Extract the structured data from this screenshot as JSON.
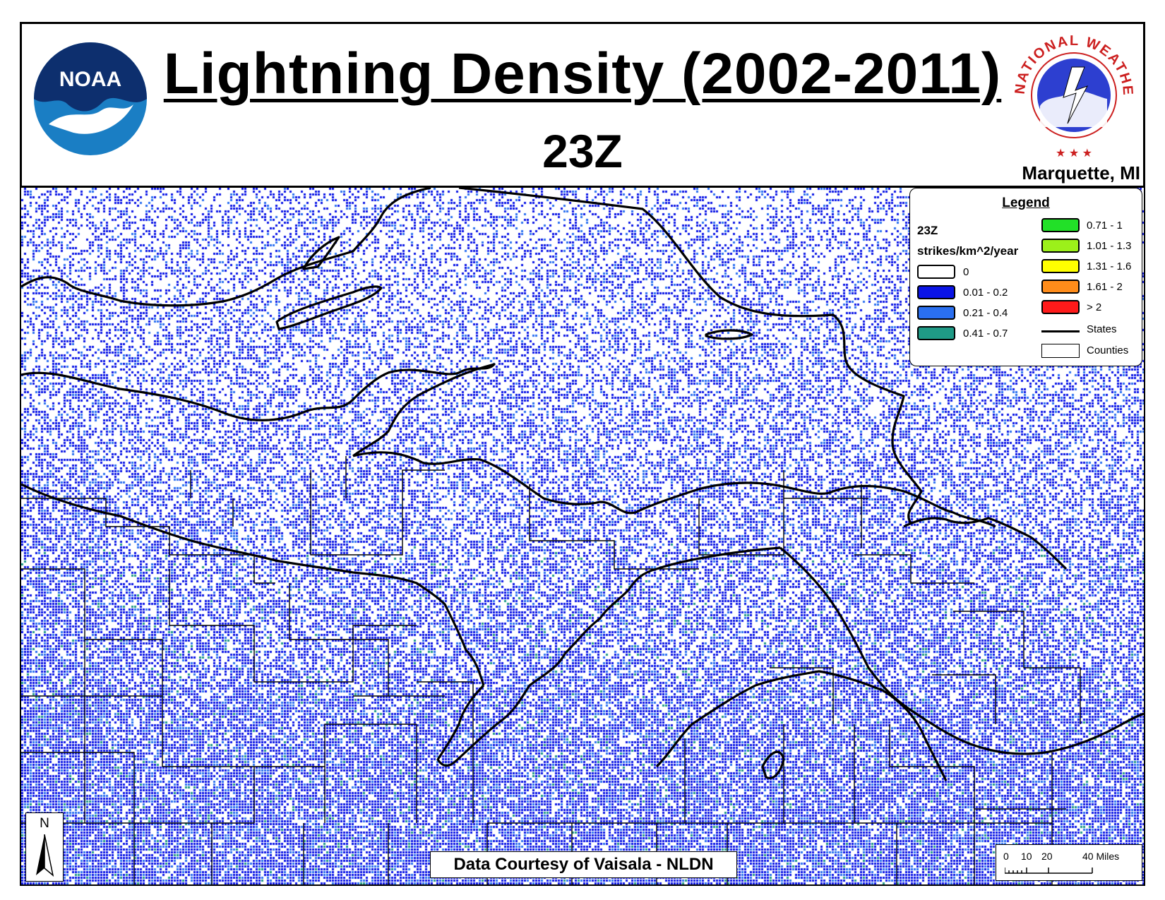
{
  "header": {
    "title": "Lightning Density (2002-2011)",
    "subtitle": "23Z",
    "office": "Marquette, MI",
    "noaa_logo_text": "NOAA",
    "nws_logo_text": "NATIONAL WEATHER SERVICE"
  },
  "legend": {
    "title": "Legend",
    "hour": "23Z",
    "units": "strikes/km^2/year",
    "classes": [
      {
        "label": "0",
        "color": "#ffffff"
      },
      {
        "label": "0.01 - 0.2",
        "color": "#0a14e6"
      },
      {
        "label": "0.21 - 0.4",
        "color": "#2a6ff0"
      },
      {
        "label": "0.41 - 0.7",
        "color": "#1f9a86"
      },
      {
        "label": "0.71 - 1",
        "color": "#22e028"
      },
      {
        "label": "1.01 - 1.3",
        "color": "#9cf01a"
      },
      {
        "label": "1.31 - 1.6",
        "color": "#ffff00"
      },
      {
        "label": "1.61 - 2",
        "color": "#ff8c1a"
      },
      {
        "label": "> 2",
        "color": "#ff1a1a"
      }
    ],
    "states_label": "States",
    "counties_label": "Counties"
  },
  "north_arrow": "N",
  "courtesy": "Data Courtesy of Vaisala - NLDN",
  "scale": {
    "ticks": [
      "0",
      "10",
      "20",
      "40 Miles"
    ]
  }
}
